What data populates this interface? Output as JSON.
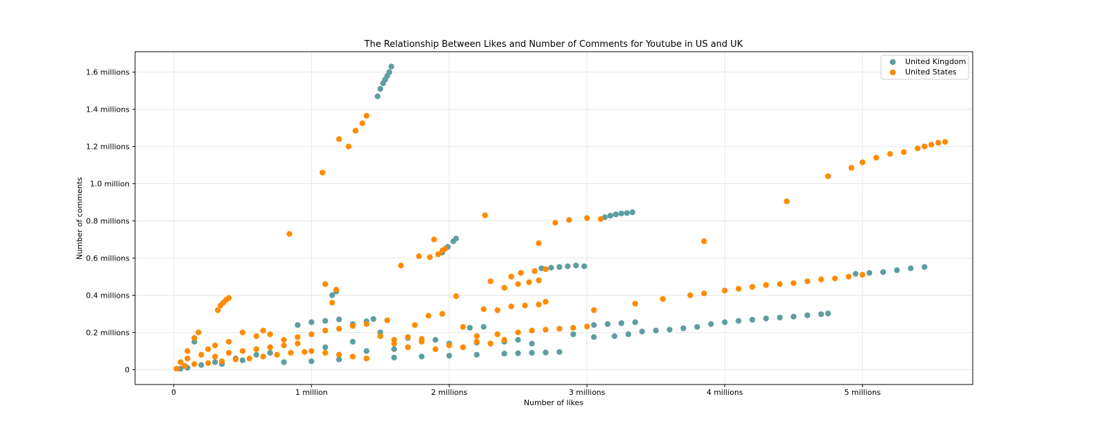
{
  "chart_data": {
    "type": "scatter",
    "title": "The Relationship Between Likes and Number of Comments for Youtube in US and UK",
    "xlabel": "Number of likes",
    "ylabel": "Number of comments",
    "xlim": [
      -280000,
      5800000
    ],
    "ylim": [
      -80000,
      1710000
    ],
    "grid": true,
    "legend_position": "top-right",
    "x_ticks": [
      {
        "value": 0,
        "label": "0"
      },
      {
        "value": 1000000,
        "label": "1 million"
      },
      {
        "value": 2000000,
        "label": "2 millions"
      },
      {
        "value": 3000000,
        "label": "3 millions"
      },
      {
        "value": 4000000,
        "label": "4 millions"
      },
      {
        "value": 5000000,
        "label": "5 millions"
      }
    ],
    "y_ticks": [
      {
        "value": 0,
        "label": "0"
      },
      {
        "value": 200000,
        "label": "0.2 millions"
      },
      {
        "value": 400000,
        "label": "0.4 millions"
      },
      {
        "value": 600000,
        "label": "0.6 millions"
      },
      {
        "value": 800000,
        "label": "0.8 millions"
      },
      {
        "value": 1000000,
        "label": "1.0 million"
      },
      {
        "value": 1200000,
        "label": "1.2 millions"
      },
      {
        "value": 1400000,
        "label": "1.4 millions"
      },
      {
        "value": 1600000,
        "label": "1.6 millions"
      }
    ],
    "series": [
      {
        "name": "United Kingdom",
        "color": "#5f9ea0",
        "points": [
          [
            1480000,
            1470000
          ],
          [
            1500000,
            1510000
          ],
          [
            1520000,
            1540000
          ],
          [
            1535000,
            1560000
          ],
          [
            1550000,
            1580000
          ],
          [
            1565000,
            1600000
          ],
          [
            1580000,
            1630000
          ],
          [
            3130000,
            820000
          ],
          [
            3170000,
            828000
          ],
          [
            3210000,
            835000
          ],
          [
            3250000,
            840000
          ],
          [
            3290000,
            842000
          ],
          [
            3330000,
            846000
          ],
          [
            1950000,
            630000
          ],
          [
            1990000,
            660000
          ],
          [
            2030000,
            690000
          ],
          [
            2050000,
            705000
          ],
          [
            2670000,
            545000
          ],
          [
            2740000,
            548000
          ],
          [
            2800000,
            552000
          ],
          [
            2860000,
            556000
          ],
          [
            2920000,
            560000
          ],
          [
            2980000,
            556000
          ],
          [
            3400000,
            205000
          ],
          [
            3500000,
            210000
          ],
          [
            3600000,
            215000
          ],
          [
            3700000,
            222000
          ],
          [
            3800000,
            230000
          ],
          [
            3900000,
            245000
          ],
          [
            4000000,
            255000
          ],
          [
            4100000,
            262000
          ],
          [
            4200000,
            268000
          ],
          [
            4300000,
            275000
          ],
          [
            4400000,
            280000
          ],
          [
            4500000,
            285000
          ],
          [
            4600000,
            292000
          ],
          [
            4700000,
            298000
          ],
          [
            4750000,
            302000
          ],
          [
            4950000,
            515000
          ],
          [
            5050000,
            520000
          ],
          [
            5150000,
            525000
          ],
          [
            5250000,
            535000
          ],
          [
            5350000,
            545000
          ],
          [
            5450000,
            552000
          ],
          [
            3050000,
            240000
          ],
          [
            3150000,
            245000
          ],
          [
            3250000,
            250000
          ],
          [
            3350000,
            255000
          ],
          [
            2800000,
            95000
          ],
          [
            2700000,
            92000
          ],
          [
            2600000,
            90000
          ],
          [
            2500000,
            88000
          ],
          [
            2400000,
            86000
          ],
          [
            2200000,
            80000
          ],
          [
            2000000,
            75000
          ],
          [
            1800000,
            70000
          ],
          [
            1600000,
            65000
          ],
          [
            1400000,
            60000
          ],
          [
            1200000,
            55000
          ],
          [
            1000000,
            45000
          ],
          [
            800000,
            40000
          ],
          [
            2900000,
            190000
          ],
          [
            3050000,
            175000
          ],
          [
            3200000,
            180000
          ],
          [
            3300000,
            190000
          ],
          [
            900000,
            240000
          ],
          [
            1000000,
            255000
          ],
          [
            1100000,
            262000
          ],
          [
            1200000,
            270000
          ],
          [
            1300000,
            245000
          ],
          [
            1400000,
            260000
          ],
          [
            1450000,
            272000
          ],
          [
            1150000,
            400000
          ],
          [
            1180000,
            420000
          ],
          [
            2150000,
            225000
          ],
          [
            2250000,
            230000
          ],
          [
            2500000,
            160000
          ],
          [
            2600000,
            140000
          ],
          [
            2400000,
            150000
          ],
          [
            2200000,
            145000
          ],
          [
            2000000,
            140000
          ],
          [
            450000,
            60000
          ],
          [
            300000,
            40000
          ],
          [
            200000,
            25000
          ],
          [
            100000,
            10000
          ],
          [
            50000,
            5000
          ],
          [
            600000,
            80000
          ],
          [
            700000,
            90000
          ],
          [
            500000,
            50000
          ],
          [
            350000,
            30000
          ],
          [
            150000,
            150000
          ],
          [
            1300000,
            150000
          ],
          [
            1500000,
            200000
          ],
          [
            1700000,
            170000
          ],
          [
            1900000,
            160000
          ],
          [
            1600000,
            110000
          ],
          [
            1400000,
            100000
          ],
          [
            1200000,
            80000
          ],
          [
            1100000,
            120000
          ]
        ]
      },
      {
        "name": "United States",
        "color": "#ff8c00",
        "points": [
          [
            1080000,
            1060000
          ],
          [
            1200000,
            1240000
          ],
          [
            1270000,
            1200000
          ],
          [
            1320000,
            1285000
          ],
          [
            1370000,
            1325000
          ],
          [
            1400000,
            1365000
          ],
          [
            840000,
            730000
          ],
          [
            320000,
            320000
          ],
          [
            340000,
            345000
          ],
          [
            360000,
            360000
          ],
          [
            380000,
            375000
          ],
          [
            400000,
            385000
          ],
          [
            1650000,
            560000
          ],
          [
            1780000,
            610000
          ],
          [
            1860000,
            605000
          ],
          [
            1890000,
            700000
          ],
          [
            1920000,
            620000
          ],
          [
            1950000,
            640000
          ],
          [
            1970000,
            650000
          ],
          [
            2260000,
            830000
          ],
          [
            2770000,
            790000
          ],
          [
            2870000,
            805000
          ],
          [
            3000000,
            815000
          ],
          [
            3100000,
            810000
          ],
          [
            2650000,
            680000
          ],
          [
            3850000,
            690000
          ],
          [
            4450000,
            905000
          ],
          [
            4750000,
            1040000
          ],
          [
            4920000,
            1085000
          ],
          [
            5000000,
            1115000
          ],
          [
            5100000,
            1140000
          ],
          [
            5200000,
            1160000
          ],
          [
            5300000,
            1170000
          ],
          [
            5400000,
            1190000
          ],
          [
            5450000,
            1200000
          ],
          [
            5500000,
            1210000
          ],
          [
            5550000,
            1220000
          ],
          [
            5600000,
            1225000
          ],
          [
            2300000,
            475000
          ],
          [
            2400000,
            440000
          ],
          [
            2450000,
            500000
          ],
          [
            2500000,
            460000
          ],
          [
            2520000,
            520000
          ],
          [
            2580000,
            470000
          ],
          [
            2620000,
            530000
          ],
          [
            2650000,
            480000
          ],
          [
            2700000,
            540000
          ],
          [
            3350000,
            355000
          ],
          [
            3550000,
            380000
          ],
          [
            3750000,
            400000
          ],
          [
            3850000,
            410000
          ],
          [
            4000000,
            425000
          ],
          [
            4100000,
            435000
          ],
          [
            4200000,
            445000
          ],
          [
            4300000,
            455000
          ],
          [
            4400000,
            460000
          ],
          [
            4500000,
            465000
          ],
          [
            4600000,
            475000
          ],
          [
            4700000,
            485000
          ],
          [
            4800000,
            490000
          ],
          [
            4900000,
            500000
          ],
          [
            5000000,
            510000
          ],
          [
            2200000,
            180000
          ],
          [
            2350000,
            190000
          ],
          [
            2500000,
            200000
          ],
          [
            2600000,
            210000
          ],
          [
            2700000,
            215000
          ],
          [
            2800000,
            220000
          ],
          [
            2900000,
            225000
          ],
          [
            3000000,
            232000
          ],
          [
            3050000,
            320000
          ],
          [
            1100000,
            460000
          ],
          [
            1150000,
            360000
          ],
          [
            1180000,
            430000
          ],
          [
            2050000,
            395000
          ],
          [
            1750000,
            240000
          ],
          [
            1850000,
            290000
          ],
          [
            1950000,
            300000
          ],
          [
            2100000,
            230000
          ],
          [
            2250000,
            325000
          ],
          [
            2350000,
            320000
          ],
          [
            2450000,
            340000
          ],
          [
            2550000,
            345000
          ],
          [
            2650000,
            350000
          ],
          [
            2700000,
            365000
          ],
          [
            100000,
            100000
          ],
          [
            150000,
            170000
          ],
          [
            180000,
            200000
          ],
          [
            250000,
            110000
          ],
          [
            300000,
            130000
          ],
          [
            400000,
            150000
          ],
          [
            500000,
            200000
          ],
          [
            600000,
            180000
          ],
          [
            650000,
            210000
          ],
          [
            700000,
            190000
          ],
          [
            800000,
            160000
          ],
          [
            900000,
            175000
          ],
          [
            1000000,
            190000
          ],
          [
            1100000,
            210000
          ],
          [
            1200000,
            220000
          ],
          [
            1300000,
            235000
          ],
          [
            1400000,
            245000
          ],
          [
            1500000,
            180000
          ],
          [
            1600000,
            160000
          ],
          [
            1700000,
            175000
          ],
          [
            1800000,
            165000
          ],
          [
            50000,
            40000
          ],
          [
            100000,
            60000
          ],
          [
            200000,
            80000
          ],
          [
            300000,
            70000
          ],
          [
            400000,
            90000
          ],
          [
            500000,
            100000
          ],
          [
            600000,
            110000
          ],
          [
            700000,
            120000
          ],
          [
            800000,
            130000
          ],
          [
            900000,
            140000
          ],
          [
            1000000,
            100000
          ],
          [
            1100000,
            90000
          ],
          [
            1200000,
            80000
          ],
          [
            1300000,
            70000
          ],
          [
            1400000,
            60000
          ],
          [
            20000,
            5000
          ],
          [
            80000,
            20000
          ],
          [
            150000,
            30000
          ],
          [
            250000,
            35000
          ],
          [
            350000,
            45000
          ],
          [
            450000,
            55000
          ],
          [
            550000,
            60000
          ],
          [
            650000,
            70000
          ],
          [
            750000,
            80000
          ],
          [
            850000,
            90000
          ],
          [
            950000,
            95000
          ],
          [
            1550000,
            265000
          ],
          [
            1600000,
            140000
          ],
          [
            1700000,
            120000
          ],
          [
            1800000,
            150000
          ],
          [
            1900000,
            110000
          ],
          [
            2000000,
            130000
          ],
          [
            2100000,
            120000
          ],
          [
            2200000,
            150000
          ],
          [
            2300000,
            140000
          ],
          [
            2400000,
            160000
          ]
        ]
      }
    ]
  }
}
